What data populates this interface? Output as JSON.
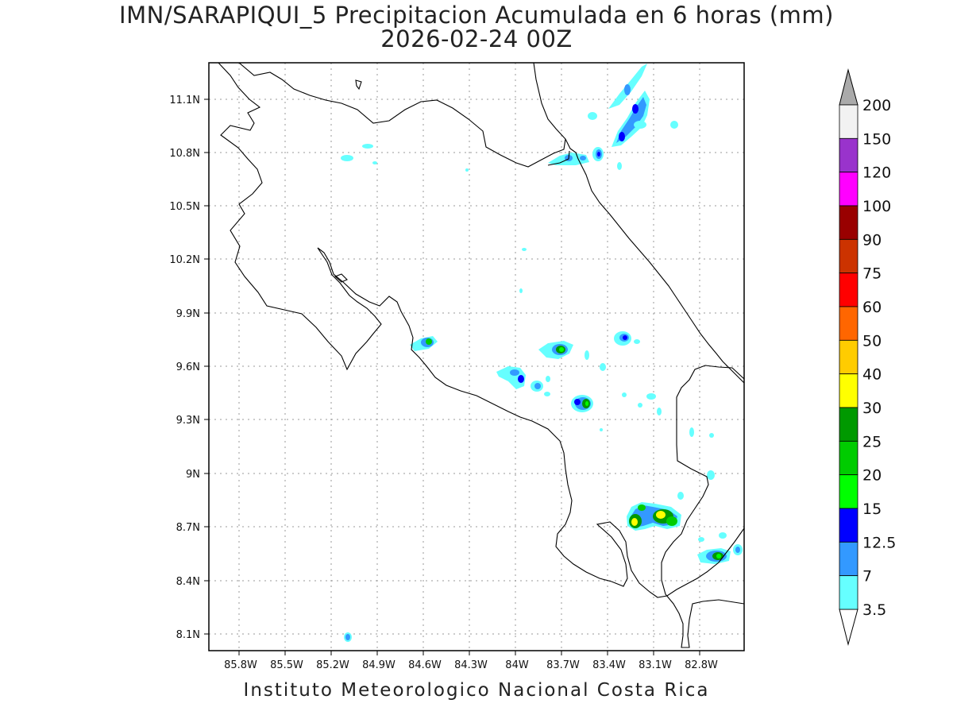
{
  "title": {
    "line1": "IMN/SARAPIQUI_5 Precipitacion Acumulada en 6 horas (mm)",
    "line2": "2026-02-24 00Z"
  },
  "footer": "Instituto Meteorologico Nacional Costa Rica",
  "map": {
    "lon_ticks": [
      "85.8W",
      "85.5W",
      "85.2W",
      "84.9W",
      "84.6W",
      "84.3W",
      "84W",
      "83.7W",
      "83.4W",
      "83.1W",
      "82.8W"
    ],
    "lat_ticks": [
      "11.1N",
      "10.8N",
      "10.5N",
      "10.2N",
      "9.9N",
      "9.6N",
      "9.3N",
      "9N",
      "8.7N",
      "8.4N",
      "8.1N"
    ],
    "lon_range": [
      -85.97,
      -82.55
    ],
    "lat_range": [
      8.01,
      11.3
    ],
    "grid": true
  },
  "colorbar": {
    "labels": [
      "200",
      "150",
      "120",
      "100",
      "90",
      "75",
      "60",
      "50",
      "40",
      "30",
      "25",
      "20",
      "15",
      "12.5",
      "7",
      "3.5"
    ],
    "colors": [
      "#f2f2f2",
      "#9933cc",
      "#ff00ff",
      "#990000",
      "#cc3300",
      "#ff0000",
      "#ff6600",
      "#ffcc00",
      "#ffff00",
      "#009900",
      "#00cc00",
      "#00ff00",
      "#0000ff",
      "#3399ff",
      "#66ffff"
    ],
    "top_arrow_color": "#aaaaaa",
    "bottom_arrow_color": "#ffffff"
  }
}
